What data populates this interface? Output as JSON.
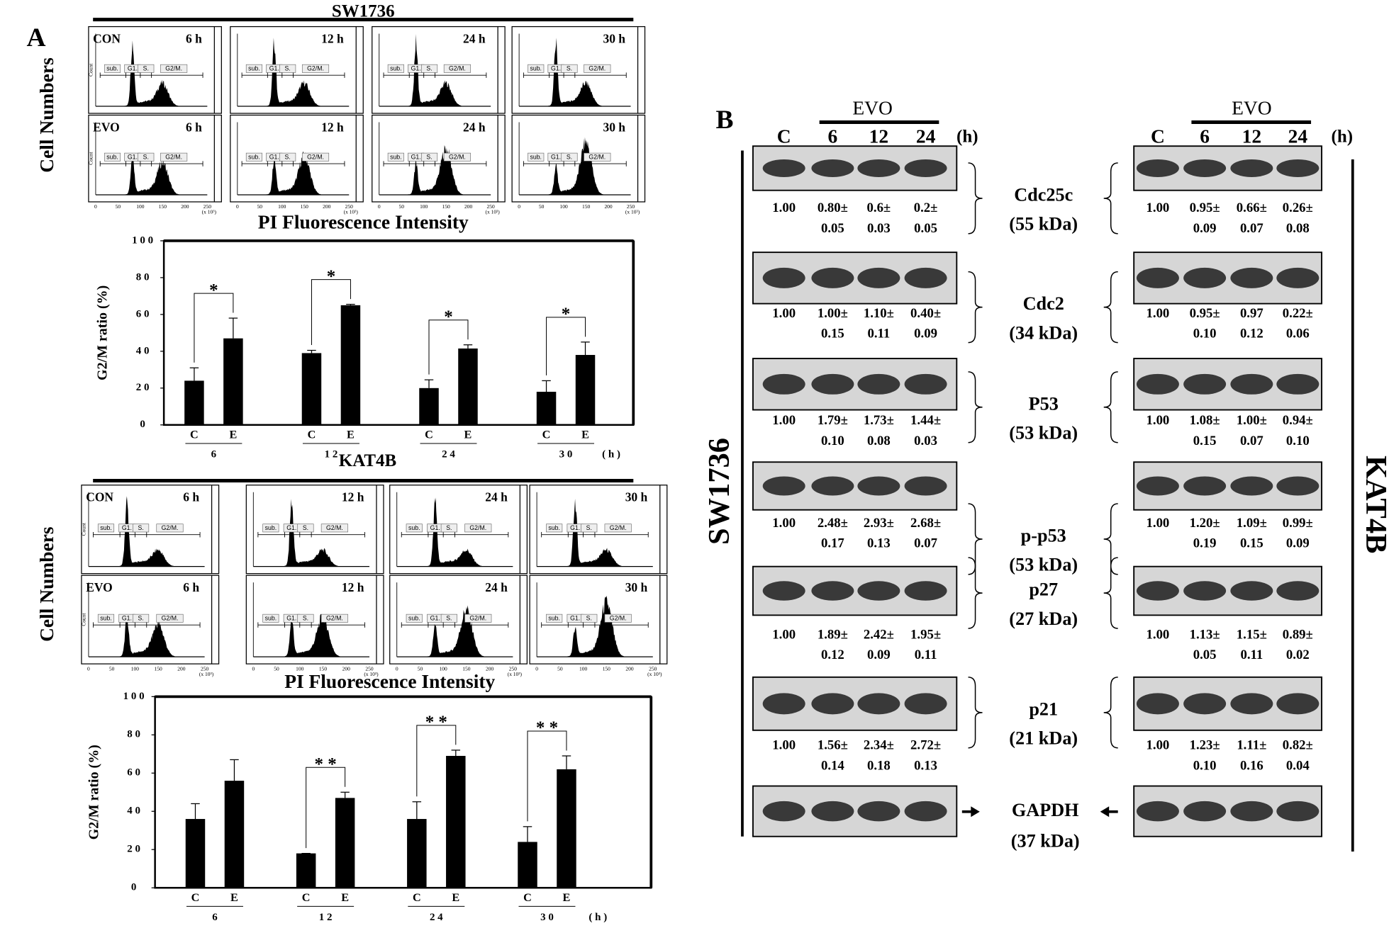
{
  "panel_a": {
    "label": "A",
    "cell_lines": [
      {
        "name": "SW1736",
        "conditions": [
          "CON",
          "EVO"
        ],
        "times": [
          "6 h",
          "12 h",
          "24 h",
          "30 h"
        ]
      },
      {
        "name": "KAT4B",
        "conditions": [
          "CON",
          "EVO"
        ],
        "times": [
          "6 h",
          "12 h",
          "24 h",
          "30 h"
        ]
      }
    ],
    "gates": [
      "sub.",
      "G1.",
      "S.",
      "G2/M."
    ],
    "count_label": "Count",
    "y_label": "Cell Numbers",
    "x_label": "PI Fluorescence Intensity",
    "hist_ticks": [
      "0",
      "50",
      "100",
      "150",
      "200",
      "250"
    ],
    "hist_unit": "(x 10³)"
  },
  "chart_data": [
    {
      "type": "bar",
      "ylabel": "G2/M ratio (%)",
      "categories": [
        "6",
        "1 2",
        "2 4",
        "3 0"
      ],
      "x_unit": "( h )",
      "series": [
        {
          "name": "C",
          "color": "#000000",
          "values": [
            24,
            39,
            20,
            18
          ],
          "errors": [
            7,
            1.5,
            4.5,
            6
          ]
        },
        {
          "name": "E",
          "color": "#000000",
          "values": [
            47,
            65,
            41.5,
            38
          ],
          "errors": [
            11,
            0.5,
            2,
            7
          ]
        }
      ],
      "significance": [
        "*",
        "*",
        "*",
        "*"
      ],
      "ylim": [
        0,
        100
      ],
      "yticks": [
        0,
        {
          "value": 20,
          "label": "2 0"
        },
        {
          "value": 40,
          "label": "4 0"
        },
        {
          "value": 60,
          "label": "6 0"
        },
        {
          "value": 80,
          "label": "8 0"
        },
        {
          "value": 100,
          "label": "1 0 0"
        }
      ]
    },
    {
      "type": "bar",
      "ylabel": "G2/M ratio (%)",
      "categories": [
        "6",
        "1 2",
        "2 4",
        "3 0"
      ],
      "x_unit": "( h )",
      "series": [
        {
          "name": "C",
          "color": "#000000",
          "values": [
            36,
            18,
            36,
            24
          ],
          "errors": [
            8,
            0,
            9,
            8
          ]
        },
        {
          "name": "E",
          "color": "#000000",
          "values": [
            56,
            47,
            69,
            62
          ],
          "errors": [
            11,
            3,
            3,
            7
          ]
        }
      ],
      "significance": [
        null,
        "* *",
        "* *",
        "* *"
      ],
      "ylim": [
        0,
        100
      ],
      "yticks": [
        0,
        {
          "value": 20,
          "label": "2 0"
        },
        {
          "value": 40,
          "label": "4 0"
        },
        {
          "value": 60,
          "label": "6 0"
        },
        {
          "value": 80,
          "label": "8 0"
        },
        {
          "value": 100,
          "label": "1 0 0"
        }
      ]
    }
  ],
  "panel_b": {
    "label": "B",
    "group": "EVO",
    "lanes": [
      "C",
      "6",
      "12",
      "24"
    ],
    "unit": "(h)",
    "cell_lines": [
      "SW1736",
      "KAT4B"
    ],
    "blots": [
      {
        "protein": "Cdc25c",
        "size": "(55 kDa)",
        "sw1736": {
          "means": [
            "1.00",
            "0.80±",
            "0.6±",
            "0.2±"
          ],
          "sds": [
            "0.05",
            "0.03",
            "0.05"
          ]
        },
        "kat4b": {
          "means": [
            "1.00",
            "0.95±",
            "0.66±",
            "0.26±"
          ],
          "sds": [
            "0.09",
            "0.07",
            "0.08"
          ]
        }
      },
      {
        "protein": "Cdc2",
        "size": "(34 kDa)",
        "sw1736": {
          "means": [
            "1.00",
            "1.00±",
            "1.10±",
            "0.40±"
          ],
          "sds": [
            "0.15",
            "0.11",
            "0.09"
          ]
        },
        "kat4b": {
          "means": [
            "1.00",
            "0.95±",
            "0.97",
            "0.22±"
          ],
          "sds": [
            "0.10",
            "0.12",
            "0.06"
          ]
        }
      },
      {
        "protein": "P53",
        "size": "(53 kDa)",
        "sw1736": {
          "means": [
            "1.00",
            "1.79±",
            "1.73±",
            "1.44±"
          ],
          "sds": [
            "0.10",
            "0.08",
            "0.03"
          ]
        },
        "kat4b": {
          "means": [
            "1.00",
            "1.08±",
            "1.00±",
            "0.94±"
          ],
          "sds": [
            "0.15",
            "0.07",
            "0.10"
          ]
        }
      },
      {
        "protein": "p-p53",
        "size": "(53 kDa)",
        "sw1736": {
          "means": [
            "1.00",
            "2.48±",
            "2.93±",
            "2.68±"
          ],
          "sds": [
            "0.17",
            "0.13",
            "0.07"
          ]
        },
        "kat4b": {
          "means": [
            "1.00",
            "1.20±",
            "1.09±",
            "0.99±"
          ],
          "sds": [
            "0.19",
            "0.15",
            "0.09"
          ]
        }
      },
      {
        "protein": "p27",
        "size": "(27 kDa)",
        "sw1736": {
          "means": [
            "1.00",
            "1.89±",
            "2.42±",
            "1.95±"
          ],
          "sds": [
            "0.12",
            "0.09",
            "0.11"
          ]
        },
        "kat4b": {
          "means": [
            "1.00",
            "1.13±",
            "1.15±",
            "0.89±"
          ],
          "sds": [
            "0.05",
            "0.11",
            "0.02"
          ]
        }
      },
      {
        "protein": "p21",
        "size": "(21 kDa)",
        "sw1736": {
          "means": [
            "1.00",
            "1.56±",
            "2.34±",
            "2.72±"
          ],
          "sds": [
            "0.14",
            "0.18",
            "0.13"
          ]
        },
        "kat4b": {
          "means": [
            "1.00",
            "1.23±",
            "1.11±",
            "0.82±"
          ],
          "sds": [
            "0.10",
            "0.16",
            "0.04"
          ]
        }
      }
    ],
    "loading_control": {
      "protein": "GAPDH",
      "size": "(37 kDa)"
    }
  }
}
